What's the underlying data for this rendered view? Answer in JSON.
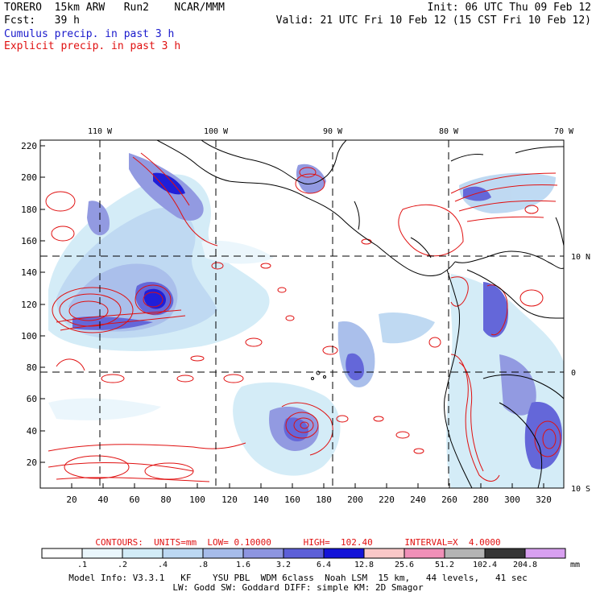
{
  "header": {
    "line1_left": "TORERO  15km ARW   Run2    NCAR/MMM",
    "line1_right": "Init: 06 UTC Thu 09 Feb 12",
    "line2_left": "Fcst:   39 h",
    "line2_right": "Valid: 21 UTC Fri 10 Feb 12 (15 CST Fri 10 Feb 12)",
    "field1": "Cumulus precip. in past 3 h",
    "field2": "Explicit precip. in past 3 h"
  },
  "colors": {
    "cumulus_text": "#1a1acc",
    "explicit_text": "#e01010",
    "coast": "#000000"
  },
  "map": {
    "top_lon_labels": [
      "110 W",
      "100 W",
      "90 W",
      "80 W",
      "70 W"
    ],
    "right_lat_labels": [
      "10 N",
      "0",
      "10 S"
    ],
    "left_ticks": [
      "220",
      "200",
      "180",
      "160",
      "140",
      "120",
      "100",
      "80",
      "60",
      "40",
      "20"
    ],
    "bottom_ticks": [
      "20",
      "40",
      "60",
      "80",
      "100",
      "120",
      "140",
      "160",
      "180",
      "200",
      "220",
      "240",
      "260",
      "280",
      "300",
      "320"
    ]
  },
  "contours_line": "CONTOURS:  UNITS=mm  LOW= 0.10000      HIGH=  102.40      INTERVAL=X  4.0000",
  "colorbar": {
    "labels": [
      ".1",
      ".2",
      ".4",
      ".8",
      "1.6",
      "3.2",
      "6.4",
      "12.8",
      "25.6",
      "51.2",
      "102.4",
      "204.8"
    ],
    "unit": "mm",
    "colors": [
      "#ffffff",
      "#eaf6fc",
      "#d2ecf7",
      "#bcd8f2",
      "#a6bcea",
      "#8d95e0",
      "#5c5fd8",
      "#1414d8",
      "#fac8c8",
      "#f090b8",
      "#b4b4b4",
      "#363636",
      "#d8a0f0"
    ]
  },
  "footer": {
    "line1": "Model Info: V3.3.1   KF    YSU PBL  WDM 6class  Noah LSM  15 km,   44 levels,   41 sec",
    "line2": "LW: Godd SW: Goddard DIFF: simple KM: 2D Smagor"
  }
}
